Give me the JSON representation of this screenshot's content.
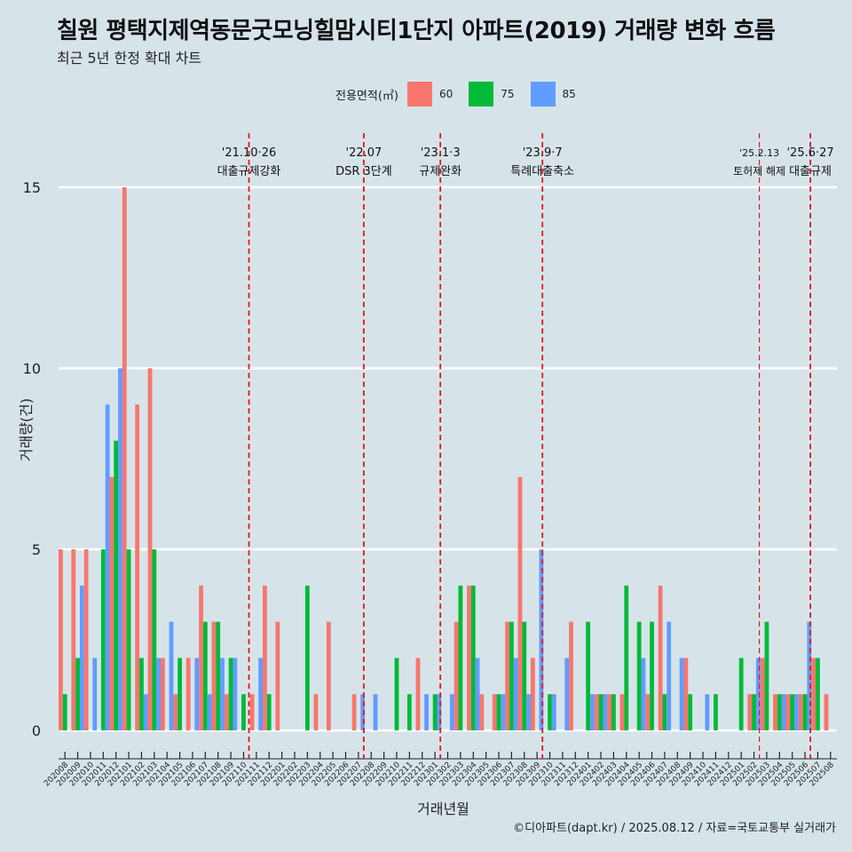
{
  "title": "칠원 평택지제역동문굿모닝힐맘시티1단지 아파트(2019) 거래량 변화 흐름",
  "subtitle": "최근 5년 한정 확대 차트",
  "caption": "©디아파트(dapt.kr) / 2025.08.12 / 자료=국토교통부 실거래가",
  "legend": {
    "title": "전용면적(㎡)",
    "items": [
      {
        "label": "60",
        "color": "#f8766d"
      },
      {
        "label": "75",
        "color": "#00ba38"
      },
      {
        "label": "85",
        "color": "#619cff"
      }
    ]
  },
  "chart_data": {
    "type": "bar",
    "xlabel": "거래년월",
    "ylabel": "거래량(건)",
    "ylim": [
      0,
      15
    ],
    "yticks": [
      0,
      5,
      10,
      15
    ],
    "grid": true,
    "legend_position": "top",
    "categories": [
      "202008",
      "202009",
      "202010",
      "202011",
      "202012",
      "202101",
      "202102",
      "202103",
      "202104",
      "202105",
      "202106",
      "202107",
      "202108",
      "202109",
      "202110",
      "202111",
      "202112",
      "202201",
      "202202",
      "202203",
      "202204",
      "202205",
      "202206",
      "202207",
      "202208",
      "202209",
      "202210",
      "202211",
      "202212",
      "202301",
      "202302",
      "202303",
      "202304",
      "202305",
      "202306",
      "202307",
      "202308",
      "202309",
      "202310",
      "202311",
      "202312",
      "202401",
      "202402",
      "202403",
      "202404",
      "202405",
      "202406",
      "202407",
      "202408",
      "202409",
      "202410",
      "202411",
      "202412",
      "202501",
      "202502",
      "202503",
      "202504",
      "202505",
      "202506",
      "202507",
      "202508"
    ],
    "series": [
      {
        "name": "60",
        "color": "#f8766d",
        "values": [
          5,
          5,
          5,
          null,
          7,
          15,
          9,
          10,
          2,
          1,
          2,
          4,
          3,
          1,
          null,
          1,
          4,
          3,
          null,
          null,
          1,
          3,
          null,
          1,
          null,
          null,
          null,
          null,
          2,
          null,
          null,
          3,
          4,
          1,
          1,
          3,
          7,
          2,
          null,
          null,
          3,
          null,
          1,
          1,
          1,
          null,
          1,
          4,
          null,
          2,
          null,
          null,
          null,
          null,
          1,
          2,
          1,
          1,
          1,
          2,
          1
        ]
      },
      {
        "name": "75",
        "color": "#00ba38",
        "values": [
          1,
          2,
          null,
          5,
          8,
          5,
          2,
          5,
          null,
          2,
          null,
          3,
          3,
          2,
          1,
          null,
          1,
          null,
          null,
          4,
          null,
          null,
          null,
          null,
          null,
          null,
          2,
          1,
          null,
          1,
          null,
          4,
          4,
          null,
          1,
          3,
          3,
          null,
          1,
          null,
          null,
          3,
          1,
          1,
          4,
          3,
          3,
          1,
          null,
          1,
          null,
          1,
          null,
          2,
          1,
          3,
          1,
          1,
          1,
          2,
          null
        ]
      },
      {
        "name": "85",
        "color": "#619cff",
        "values": [
          null,
          4,
          2,
          9,
          10,
          null,
          1,
          2,
          3,
          null,
          2,
          1,
          2,
          2,
          null,
          2,
          null,
          null,
          null,
          null,
          null,
          null,
          null,
          1,
          1,
          null,
          null,
          null,
          1,
          1,
          1,
          null,
          2,
          null,
          1,
          2,
          1,
          5,
          1,
          2,
          null,
          1,
          1,
          null,
          null,
          2,
          null,
          3,
          2,
          null,
          1,
          null,
          null,
          null,
          2,
          null,
          1,
          1,
          3,
          null,
          null
        ]
      }
    ],
    "events": [
      {
        "date": "'21.10·26",
        "label": "대출규제강화",
        "after": "202110"
      },
      {
        "date": "'22.07",
        "label": "DSR 3단계",
        "after": "202207"
      },
      {
        "date": "'23.1·3",
        "label": "규제완화",
        "after": "202301"
      },
      {
        "date": "'23.9·7",
        "label": "특례대출축소",
        "after": "202309"
      },
      {
        "date": "'25.2.13",
        "label": "토허제 해제",
        "after": "202502"
      },
      {
        "date": "'25.6·27",
        "label": "대출규제",
        "after": "202506"
      }
    ]
  }
}
